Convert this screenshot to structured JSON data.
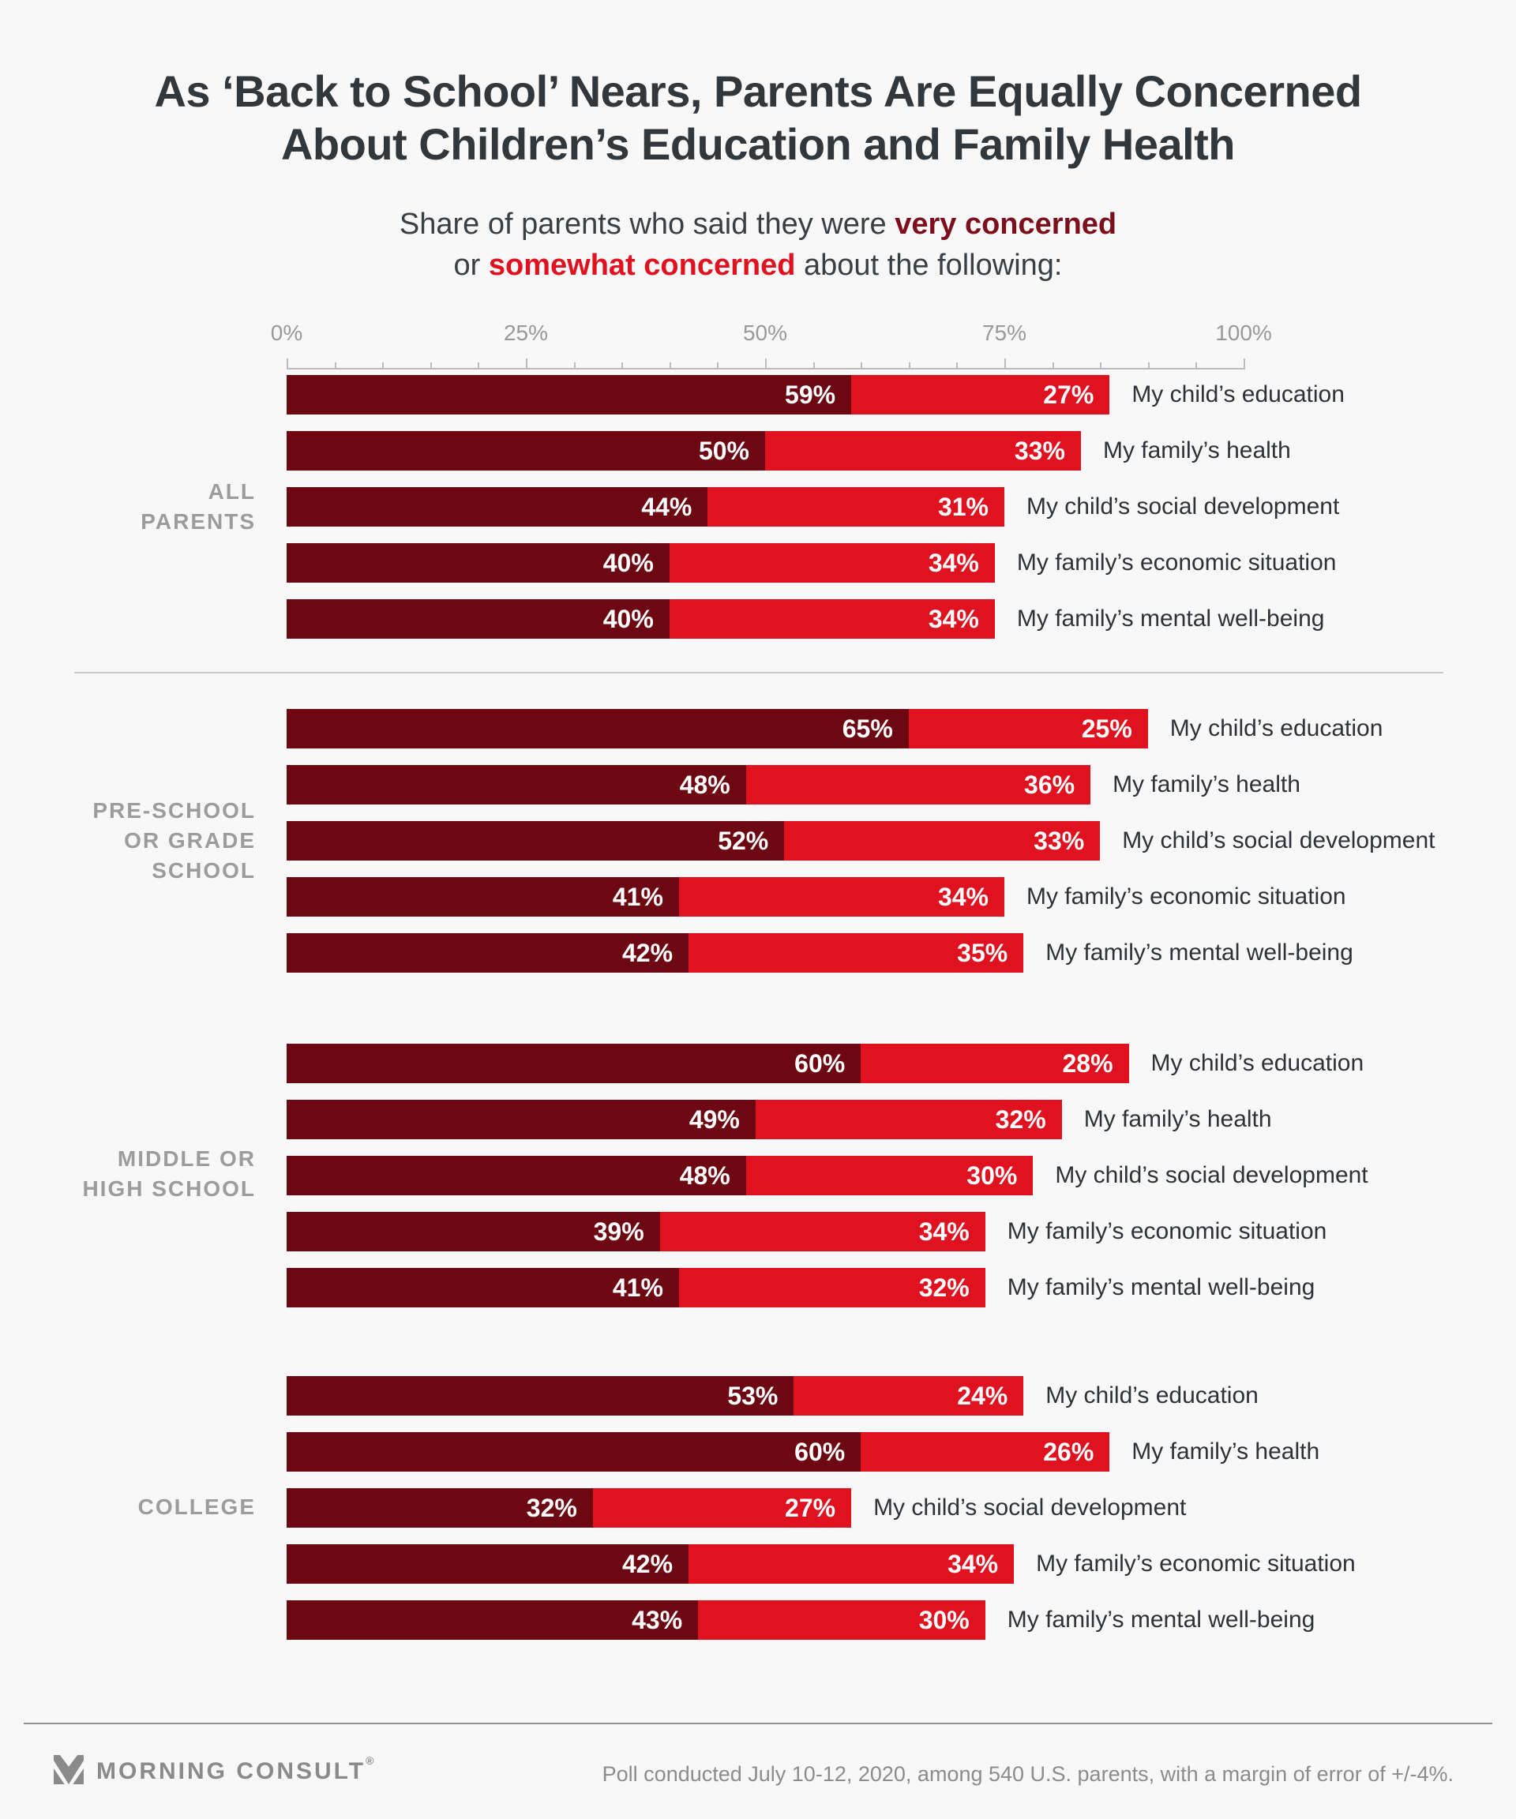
{
  "page": {
    "background": "#f8f8f8"
  },
  "header": {
    "title_lines": [
      "As ‘Back to School’ Nears, Parents Are Equally Concerned",
      "About Children’s Education and Family Health"
    ],
    "subtitle": {
      "line1_prefix": "Share of parents who said they were ",
      "line1_accent": "very concerned",
      "line2_prefix": "or ",
      "line2_accent": "somewhat concerned",
      "line2_suffix": " about the following:",
      "accent_very_color": "#7d0e1c",
      "accent_somewhat_color": "#e1121f"
    }
  },
  "chart_data": {
    "type": "bar",
    "orientation": "horizontal",
    "stacked": true,
    "unit": "%",
    "axis": {
      "range": [
        0,
        100
      ],
      "ticks": [
        0,
        25,
        50,
        75,
        100
      ],
      "tick_labels": [
        "0%",
        "25%",
        "50%",
        "75%",
        "100%"
      ],
      "minor_tick_step": 5
    },
    "series_names": [
      "Very concerned",
      "Somewhat concerned"
    ],
    "colors": {
      "very": "#6d0812",
      "somewhat": "#e1121f"
    },
    "categories": [
      "My child’s education",
      "My family’s health",
      "My child’s social development",
      "My family’s economic situation",
      "My family’s mental well-being"
    ],
    "groups": [
      {
        "label_lines": [
          "ALL",
          "PARENTS"
        ],
        "very": [
          59,
          50,
          44,
          40,
          40
        ],
        "somewhat": [
          27,
          33,
          31,
          34,
          34
        ]
      },
      {
        "label_lines": [
          "PRE-SCHOOL",
          "OR GRADE",
          "SCHOOL"
        ],
        "very": [
          65,
          48,
          52,
          41,
          42
        ],
        "somewhat": [
          25,
          36,
          33,
          34,
          35
        ]
      },
      {
        "label_lines": [
          "MIDDLE OR",
          "HIGH SCHOOL"
        ],
        "very": [
          60,
          49,
          48,
          39,
          41
        ],
        "somewhat": [
          28,
          32,
          30,
          34,
          32
        ]
      },
      {
        "label_lines": [
          "COLLEGE"
        ],
        "very": [
          53,
          60,
          32,
          42,
          43
        ],
        "somewhat": [
          24,
          26,
          27,
          34,
          30
        ]
      }
    ]
  },
  "footer": {
    "brand": "MORNING CONSULT",
    "reg": "®",
    "note": "Poll conducted July 10-12, 2020, among 540 U.S. parents, with a margin of error of +/-4%."
  }
}
